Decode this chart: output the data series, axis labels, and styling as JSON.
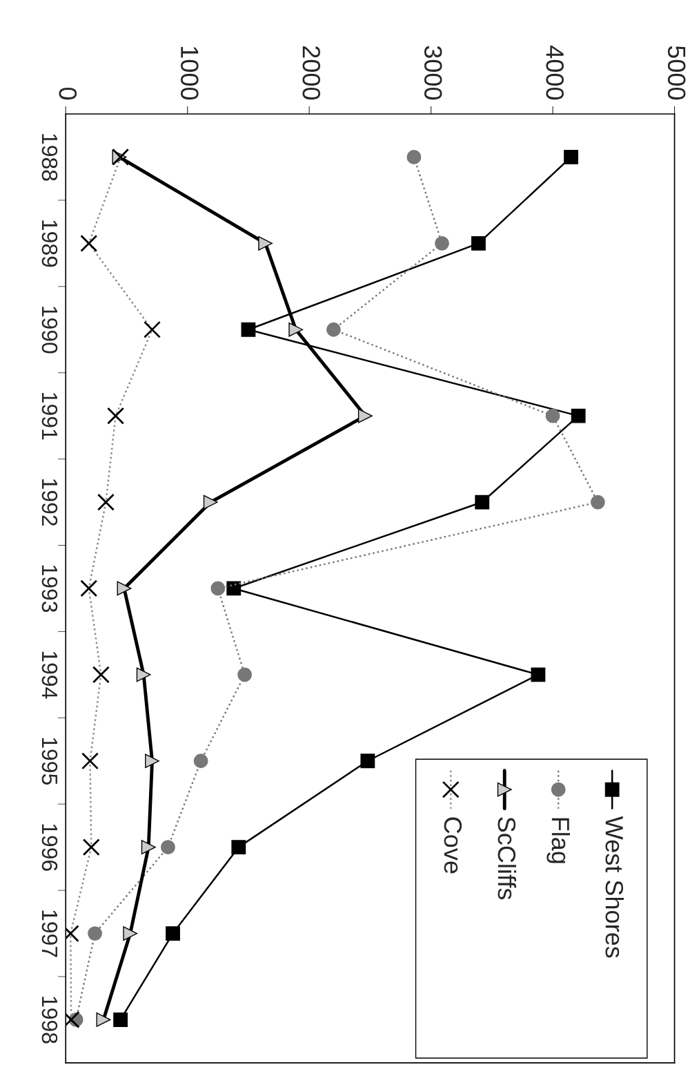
{
  "chart_data": {
    "type": "line",
    "orientation": "horizontal",
    "categories": [
      "1988",
      "1989",
      "1990",
      "1991",
      "1992",
      "1993",
      "1994",
      "1995",
      "1996",
      "1997",
      "1998"
    ],
    "xlim": [
      0,
      5000
    ],
    "xticks": [
      0,
      1000,
      2000,
      3000,
      4000,
      5000
    ],
    "grid": false,
    "legend": "bottom right",
    "series": [
      {
        "name": "West Shores",
        "color": "#000000",
        "marker": "square",
        "line_style": "solid",
        "values": [
          4150,
          3390,
          1500,
          4210,
          3420,
          1380,
          3880,
          2480,
          1420,
          880,
          450
        ]
      },
      {
        "name": "Flag",
        "color": "#777777",
        "marker": "circle",
        "line_style": "dotted",
        "values": [
          2860,
          3090,
          2200,
          4000,
          4370,
          1250,
          1470,
          1110,
          840,
          240,
          85
        ]
      },
      {
        "name": "ScCliffs",
        "color": "#000000",
        "marker": "triangle",
        "line_style": "solid",
        "values": [
          440,
          1640,
          1890,
          2460,
          1190,
          480,
          640,
          710,
          680,
          530,
          310
        ]
      },
      {
        "name": "Cove",
        "color": "#888888",
        "marker": "cross",
        "line_style": "dotted",
        "values": [
          450,
          190,
          710,
          410,
          330,
          190,
          290,
          200,
          210,
          40,
          45
        ]
      }
    ]
  }
}
